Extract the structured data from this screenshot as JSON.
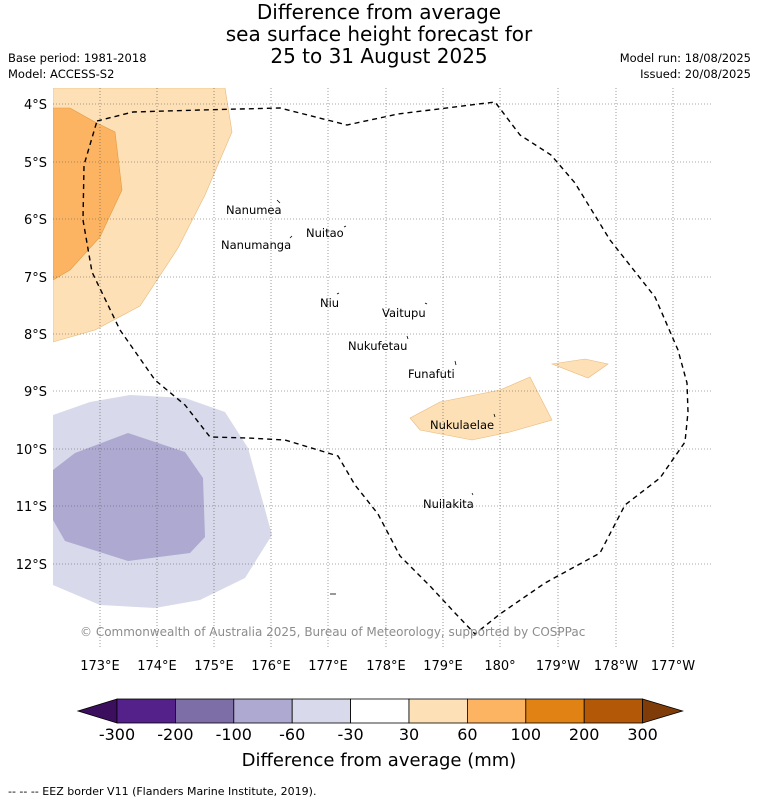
{
  "title": {
    "line1": "Difference from average",
    "line2": "sea surface height forecast for",
    "line3": "25 to 31 August 2025"
  },
  "meta": {
    "base_period": "Base period: 1981-2018",
    "model": "Model: ACCESS-S2",
    "model_run": "Model run: 18/08/2025",
    "issued": "Issued: 20/08/2025"
  },
  "map": {
    "lat_labels": [
      "4°S",
      "5°S",
      "6°S",
      "7°S",
      "8°S",
      "9°S",
      "10°S",
      "11°S",
      "12°S"
    ],
    "lon_labels": [
      "173°E",
      "174°E",
      "175°E",
      "176°E",
      "177°E",
      "178°E",
      "179°E",
      "180°",
      "179°W",
      "178°W",
      "177°W"
    ],
    "places": [
      {
        "name": "Nanumea"
      },
      {
        "name": "Nuitao"
      },
      {
        "name": "Nanumanga"
      },
      {
        "name": "Niu"
      },
      {
        "name": "Vaitupu"
      },
      {
        "name": "Nukufetau"
      },
      {
        "name": "Funafuti"
      },
      {
        "name": "Nukulaelae"
      },
      {
        "name": "Nuilakita"
      }
    ],
    "copyright": "© Commonwealth of Australia 2025, Bureau of Meteorology, supported by COSPPac"
  },
  "colorbar": {
    "ticks": [
      "-300",
      "-200",
      "-100",
      "-60",
      "-30",
      "30",
      "60",
      "100",
      "200",
      "300"
    ],
    "colors": [
      "#3b0f5e",
      "#54218a",
      "#7d6ea8",
      "#ada9d1",
      "#d8d9ea",
      "#ffffff",
      "#fee0b6",
      "#fdb462",
      "#e08214",
      "#b35806",
      "#7f3b08"
    ],
    "title": "Difference from average (mm)"
  },
  "footnote": "-- -- -- EEZ border V11 (Flanders Marine Institute, 2019)."
}
